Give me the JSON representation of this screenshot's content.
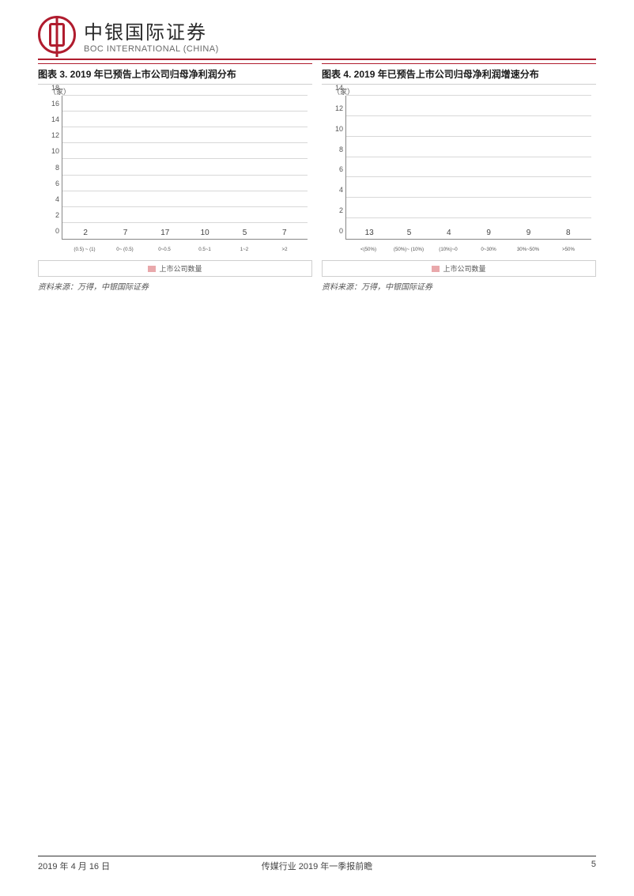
{
  "header": {
    "company_cn": "中银国际证券",
    "company_en": "BOC INTERNATIONAL (CHINA)"
  },
  "chart3": {
    "title": "图表 3. 2019 年已预告上市公司归母净利润分布",
    "type": "bar",
    "y_unit": "（家）",
    "y_ticks": [
      0,
      2,
      4,
      6,
      8,
      10,
      12,
      14,
      16,
      18
    ],
    "y_max": 18,
    "categories": [
      "(0.5) ~ (1)",
      "0~ (0.5)",
      "0~0.5",
      "0.5~1",
      "1~2",
      ">2"
    ],
    "values": [
      2,
      7,
      17,
      10,
      5,
      7
    ],
    "bar_color": "#e9a8ab",
    "grid_color": "#d8d8d8",
    "legend_label": "上市公司数量",
    "source": "资料来源：万得，中银国际证券"
  },
  "chart4": {
    "title": "图表 4. 2019 年已预告上市公司归母净利润增速分布",
    "type": "bar",
    "y_unit": "（家）",
    "y_ticks": [
      0,
      2,
      4,
      6,
      8,
      10,
      12,
      14
    ],
    "y_max": 14,
    "categories": [
      "<(50%)",
      "(50%)~ (10%)",
      "(10%)~0",
      "0~30%",
      "30%~50%",
      ">50%"
    ],
    "values": [
      13,
      5,
      4,
      9,
      9,
      8
    ],
    "bar_color": "#e9a8ab",
    "grid_color": "#d8d8d8",
    "legend_label": "上市公司数量",
    "source": "资料来源：万得，中银国际证券"
  },
  "footer": {
    "date": "2019 年 4 月 16 日",
    "title": "传媒行业 2019 年一季报前瞻",
    "page": "5"
  }
}
